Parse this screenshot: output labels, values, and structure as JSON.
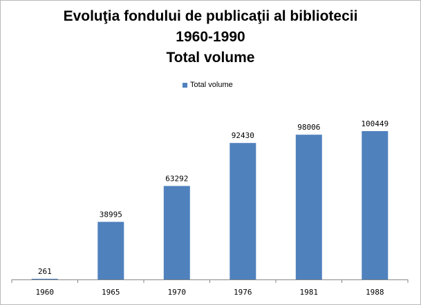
{
  "chart_data": {
    "type": "bar",
    "title_lines": [
      "Evoluţia fondului de publicaţii al bibliotecii",
      "1960-1990",
      "Total volume"
    ],
    "categories": [
      "1960",
      "1965",
      "1970",
      "1976",
      "1981",
      "1988"
    ],
    "series": [
      {
        "name": "Total volume",
        "values": [
          261,
          38995,
          63292,
          92430,
          98006,
          100449
        ],
        "color": "#4f81bd"
      }
    ],
    "data_labels": [
      "261",
      "38995",
      "63292",
      "92430",
      "98006",
      "100449"
    ],
    "xlabel": "",
    "ylabel": "",
    "ylim": [
      0,
      120000
    ],
    "legend_position": "top",
    "grid": false
  }
}
